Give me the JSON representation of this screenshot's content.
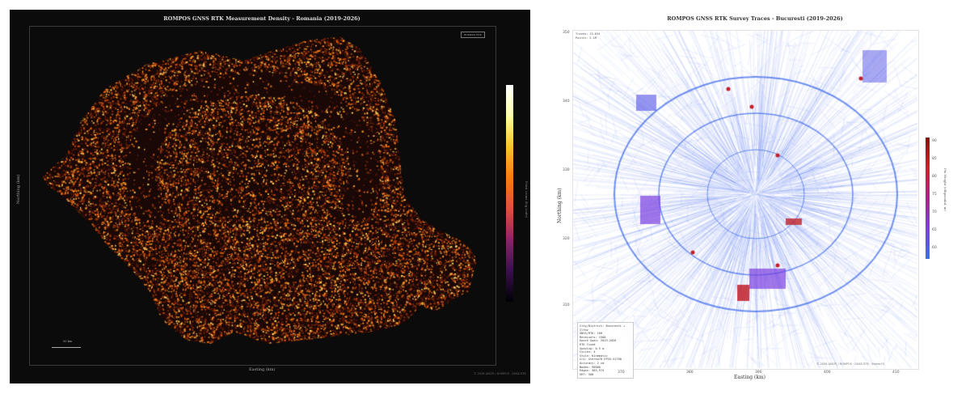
{
  "left": {
    "title": "ROMPOS GNSS RTK Measurement Density - Romania (2019-2026)",
    "xlabel": "Easting (km)",
    "ylabel": "Northing (km)",
    "colorbar_label": "Point count (log scale)",
    "legend_label": "ROMPOS RTK",
    "scale_label": "50 km",
    "credit": "© 2026 ANCPI / ROMPOS · GNSS RTK",
    "colors": {
      "background": "#0b0b0b",
      "low": "#3b0f4f",
      "mid": "#f57d15",
      "high": "#fcffa4"
    }
  },
  "right": {
    "title": "ROMPOS GNSS RTK Survey Traces - Bucuresti (2019-2026)",
    "xlabel": "Easting (km)",
    "ylabel": "Northing (km)",
    "x_ticks": [
      "370",
      "380",
      "390",
      "400",
      "410"
    ],
    "y_ticks": [
      "350",
      "340",
      "330",
      "320",
      "310"
    ],
    "colorbar_label": "Fix Height (ellipsoidal, m)",
    "colorbar_ticks": [
      "90",
      "85",
      "80",
      "75",
      "70",
      "65",
      "60"
    ],
    "info": [
      "Traces: 15,634",
      "Points: 2.1M"
    ],
    "stats": [
      "City/District: Bucuresti + Ilfov",
      "GNSS/RTK: 100",
      "Receivers: 1500",
      "Epoch Span: 2019-2026",
      "RTK fixed",
      "Spacing: 0.5 m",
      "Cycles: 4",
      "Style: Kinematic",
      "Crs: Stereo70 EPSG:31700",
      "Accuracy: 2 cm",
      "Nodes: 90000",
      "Edges: 385,974",
      "SRT: 500"
    ],
    "credit": "© 2026 ANCPI / ROMPOS · GNSS RTK · Stereo70",
    "colors": {
      "trace": "#3563e9",
      "high": "#c0202a",
      "mid": "#7a3fe0"
    }
  }
}
